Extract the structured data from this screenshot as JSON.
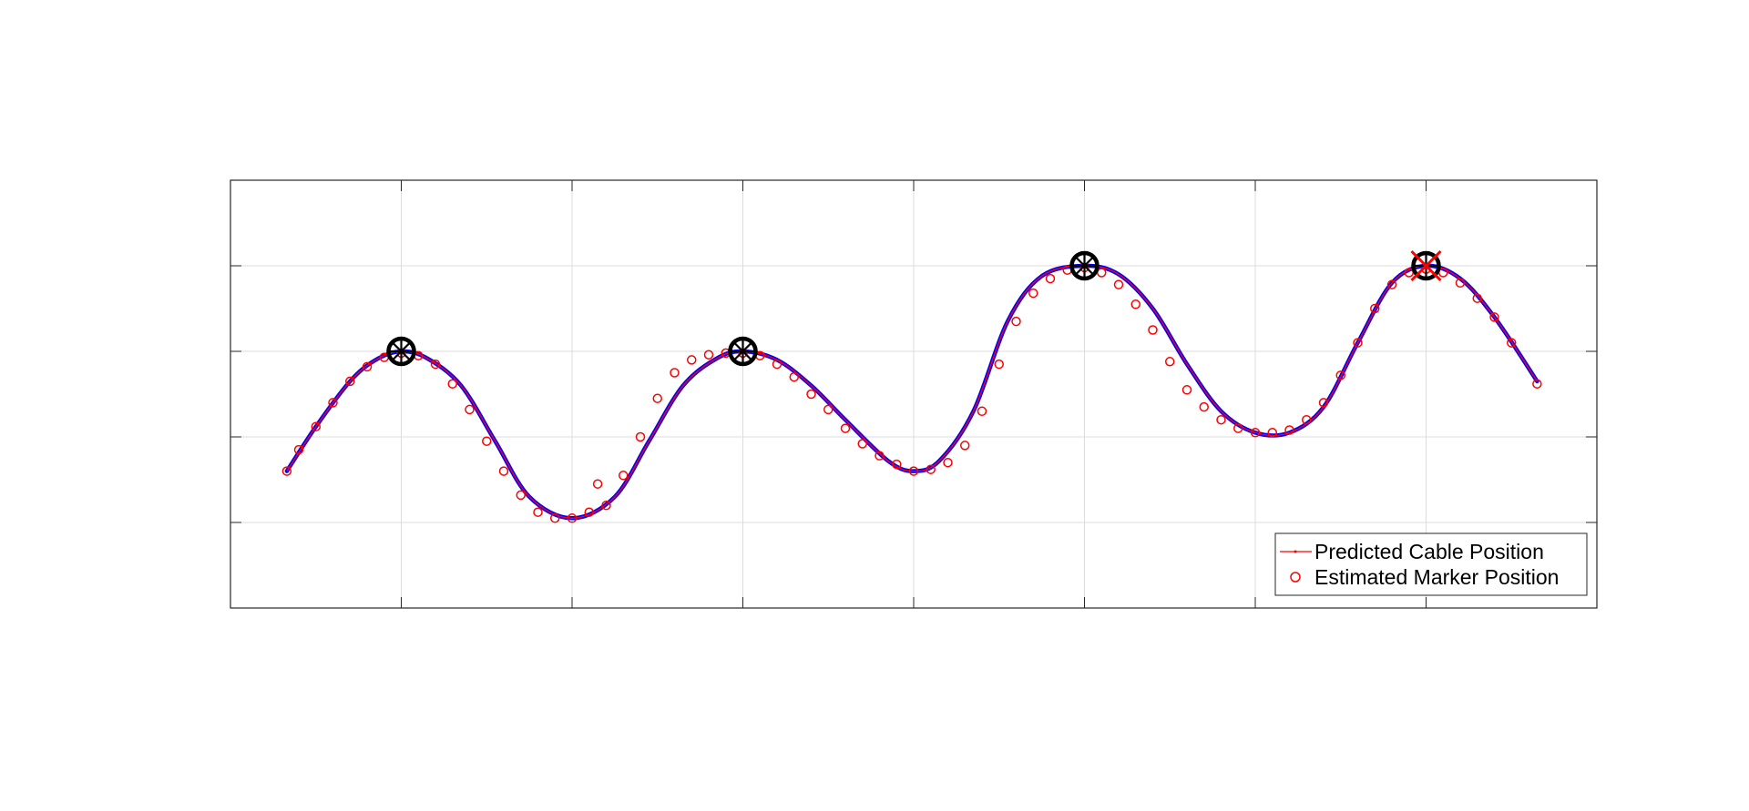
{
  "chart_data": {
    "type": "line",
    "title": "",
    "xlabel": "",
    "ylabel": "",
    "xlim": [
      0,
      8
    ],
    "ylim": [
      0,
      5
    ],
    "xticks": [
      1,
      2,
      3,
      4,
      5,
      6,
      7
    ],
    "yticks": [
      1,
      2,
      3,
      4
    ],
    "grid": true,
    "legend_position": "bottom-right",
    "colors": {
      "cable_line": "#0000ff",
      "predicted": "#ff0000",
      "estimated": "#ff0000",
      "support": "#000000"
    },
    "series": [
      {
        "name": "Predicted Cable Position",
        "style": "line",
        "x": [
          0.33,
          0.5,
          0.7,
          0.85,
          1.0,
          1.15,
          1.35,
          1.55,
          1.75,
          2.0,
          2.25,
          2.45,
          2.65,
          2.85,
          3.0,
          3.2,
          3.4,
          3.6,
          3.85,
          4.0,
          4.15,
          4.35,
          4.55,
          4.75,
          5.0,
          5.2,
          5.4,
          5.6,
          5.8,
          6.0,
          6.2,
          6.4,
          6.6,
          6.8,
          7.0,
          7.2,
          7.4,
          7.65
        ],
        "y": [
          1.6,
          2.12,
          2.65,
          2.9,
          3.0,
          2.92,
          2.6,
          1.95,
          1.3,
          1.05,
          1.3,
          1.95,
          2.6,
          2.92,
          3.0,
          2.9,
          2.6,
          2.2,
          1.72,
          1.6,
          1.72,
          2.3,
          3.35,
          3.88,
          4.0,
          3.9,
          3.5,
          2.85,
          2.3,
          2.05,
          2.05,
          2.35,
          3.1,
          3.8,
          4.0,
          3.85,
          3.4,
          2.65
        ]
      },
      {
        "name": "Estimated Marker Position",
        "style": "markers",
        "x": [
          0.33,
          0.4,
          0.5,
          0.6,
          0.7,
          0.8,
          0.9,
          1.0,
          1.1,
          1.2,
          1.3,
          1.4,
          1.5,
          1.6,
          1.7,
          1.8,
          1.9,
          2.0,
          2.1,
          2.15,
          2.2,
          2.3,
          2.4,
          2.5,
          2.6,
          2.7,
          2.8,
          2.9,
          3.0,
          3.1,
          3.2,
          3.3,
          3.4,
          3.5,
          3.6,
          3.7,
          3.8,
          3.9,
          4.0,
          4.1,
          4.2,
          4.3,
          4.4,
          4.5,
          4.6,
          4.7,
          4.8,
          4.9,
          5.0,
          5.1,
          5.2,
          5.3,
          5.4,
          5.5,
          5.6,
          5.7,
          5.8,
          5.9,
          6.0,
          6.1,
          6.2,
          6.3,
          6.4,
          6.5,
          6.6,
          6.7,
          6.8,
          6.9,
          7.0,
          7.1,
          7.2,
          7.3,
          7.4,
          7.5,
          7.65
        ],
        "y": [
          1.6,
          1.85,
          2.12,
          2.4,
          2.65,
          2.82,
          2.93,
          2.98,
          2.95,
          2.85,
          2.62,
          2.32,
          1.95,
          1.6,
          1.32,
          1.12,
          1.05,
          1.05,
          1.12,
          1.45,
          1.2,
          1.55,
          2.0,
          2.45,
          2.75,
          2.9,
          2.96,
          2.98,
          2.98,
          2.95,
          2.85,
          2.7,
          2.5,
          2.32,
          2.1,
          1.92,
          1.78,
          1.68,
          1.6,
          1.62,
          1.7,
          1.9,
          2.3,
          2.85,
          3.35,
          3.68,
          3.85,
          3.95,
          3.98,
          3.92,
          3.78,
          3.55,
          3.25,
          2.88,
          2.55,
          2.35,
          2.2,
          2.1,
          2.05,
          2.05,
          2.08,
          2.2,
          2.4,
          2.72,
          3.1,
          3.5,
          3.78,
          3.92,
          3.96,
          3.92,
          3.8,
          3.62,
          3.4,
          3.1,
          2.62
        ]
      }
    ],
    "support_points": {
      "x": [
        1,
        3,
        5,
        7
      ],
      "y": [
        3,
        3,
        4,
        4
      ]
    }
  }
}
